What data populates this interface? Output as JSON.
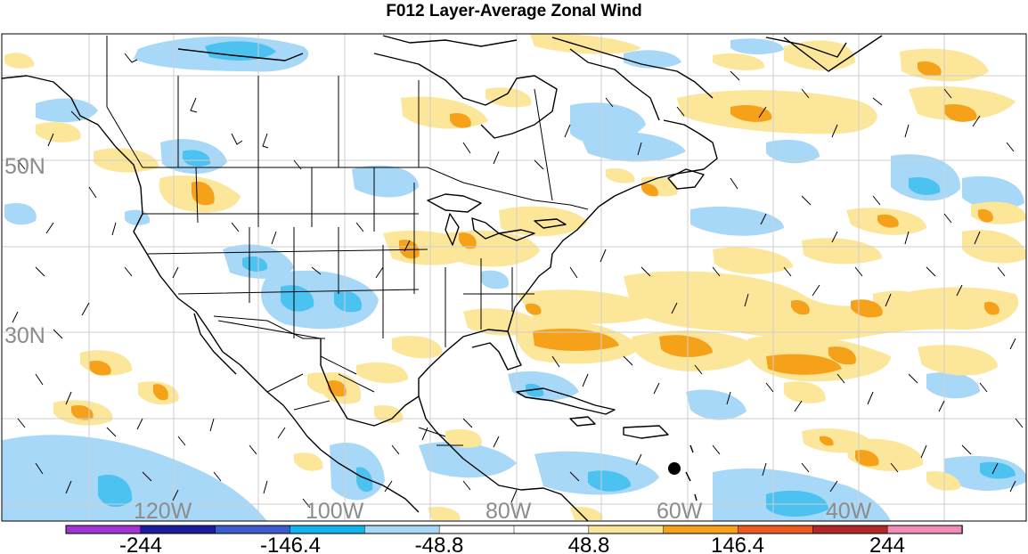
{
  "title": "F012 Layer-Average Zonal Wind",
  "colors": {
    "neg_light": "#a8d8f8",
    "neg_mid": "#4cc2f0",
    "neg_dark": "#1a9fe0",
    "pos_light": "#fbe69a",
    "pos_mid": "#f5a21a",
    "pos_dark": "#e8601c",
    "land_line": "#000000",
    "grid": "#cfcfcf"
  },
  "latitude_labels": [
    "50N",
    "30N"
  ],
  "longitude_labels": [
    "120W",
    "100W",
    "80W",
    "60W",
    "40W"
  ],
  "colorbar": {
    "tick_labels": [
      "-244",
      "-146.4",
      "-48.8",
      "48.8",
      "146.4",
      "244"
    ],
    "segment_colors": [
      "#a335d6",
      "#1c1ca0",
      "#3c5ccd",
      "#12b4ee",
      "#a8d8f8",
      "#ffffff",
      "#ffffff",
      "#fbe69a",
      "#f5a21a",
      "#ee5a1f",
      "#b22828",
      "#f08cb8"
    ]
  }
}
